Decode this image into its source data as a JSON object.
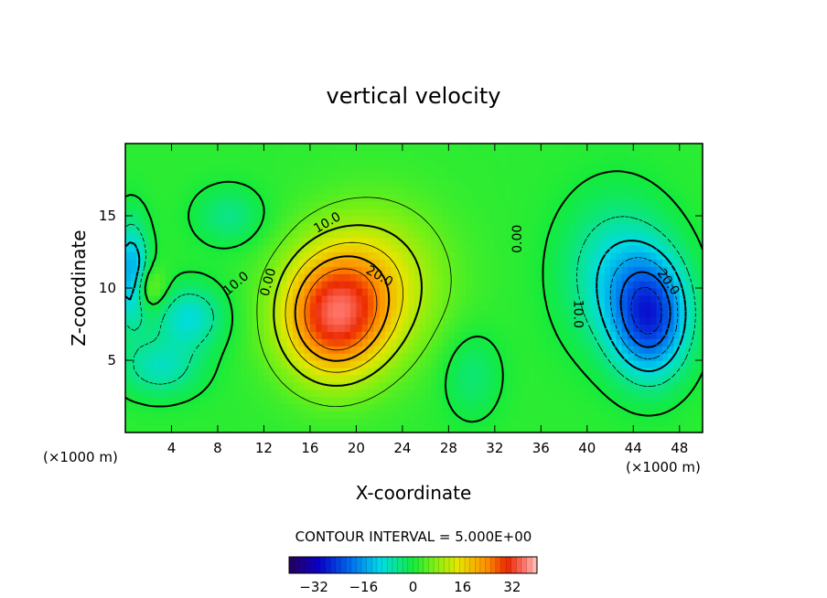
{
  "chart_data": {
    "type": "heatmap",
    "title": "vertical velocity",
    "xlabel": "X-coordinate",
    "ylabel": "Z-coordinate",
    "x_units": "(×1000 m)",
    "z_units": "(×1000 m)",
    "xlim": [
      0,
      50
    ],
    "ylim": [
      0,
      20
    ],
    "x_ticks": [
      4,
      8,
      12,
      16,
      20,
      24,
      28,
      32,
      36,
      40,
      44,
      48
    ],
    "y_ticks": [
      5,
      10,
      15
    ],
    "contour_interval_text": "CONTOUR INTERVAL = 5.000E+00",
    "contour_labels": [
      {
        "text": "10.0",
        "x": 17.5,
        "y": 14.5,
        "rot": -30
      },
      {
        "text": "20.0",
        "x": 22,
        "y": 10.8,
        "rot": 30
      },
      {
        "text": "0.00",
        "x": 34,
        "y": 13.4,
        "rot": -90
      },
      {
        "text": "0.00",
        "x": 12.4,
        "y": 10.4,
        "rot": -75
      },
      {
        "text": "10.0",
        "x": 9.6,
        "y": 10.3,
        "rot": -40
      },
      {
        "text": "10.0",
        "x": 39.2,
        "y": 8.2,
        "rot": 90
      },
      {
        "text": "20.0",
        "x": 47,
        "y": 10.4,
        "rot": 55
      }
    ],
    "features": [
      {
        "sign": "positive",
        "peak": 27,
        "x": 18,
        "z": 8
      },
      {
        "sign": "negative",
        "peak": -25,
        "x": 45.5,
        "z": 8
      },
      {
        "sign": "negative",
        "peak": -17,
        "x": 0.5,
        "z": 11
      },
      {
        "sign": "negative",
        "peak": -9,
        "x": 5.5,
        "z": 8.5
      }
    ],
    "colorbar": {
      "min": -40,
      "max": 40,
      "ticks": [
        -32,
        -16,
        0,
        16,
        32
      ]
    }
  }
}
